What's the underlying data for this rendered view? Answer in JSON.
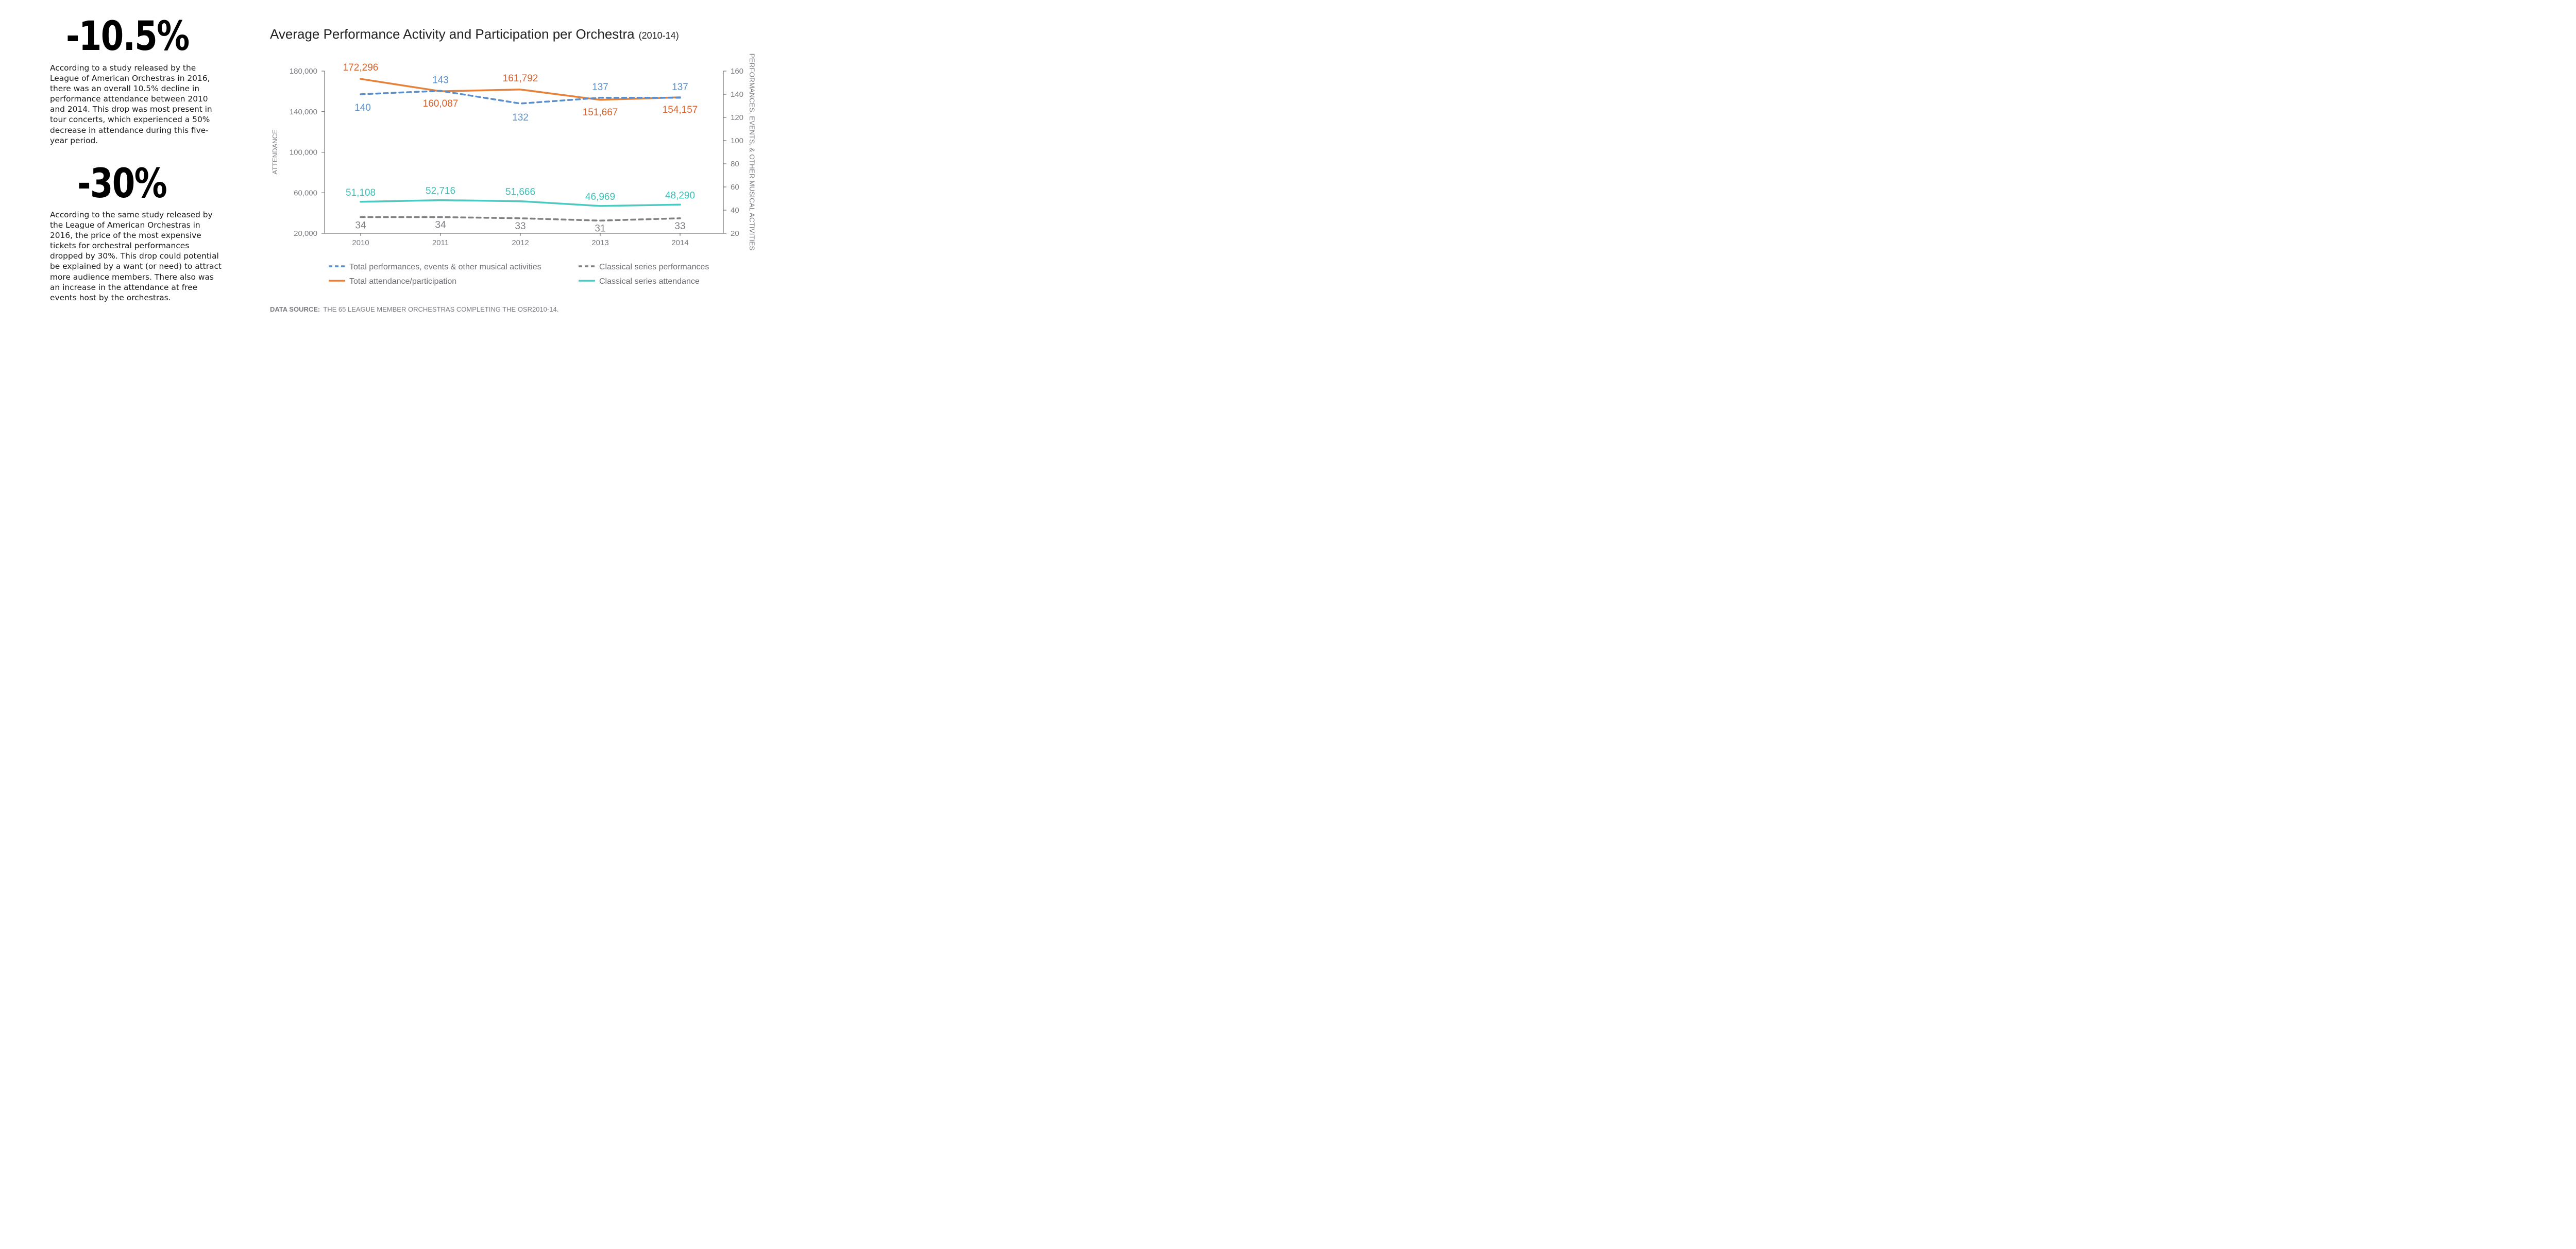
{
  "stats": [
    {
      "value": "-10.5%",
      "text": "According to a study released by the League of American Orchestras in 2016, there was an overall 10.5% decline in performance attendance between 2010 and 2014. This drop was most present in tour concerts, which experienced a 50% decrease in attendance during this five-year period."
    },
    {
      "value": "-30%",
      "text": "According to the same study released by the League of American Orchestras in 2016, the price of the most expensive tickets for orchestral performances dropped by 30%. This drop could potential be explained by a want (or need) to attract more audience members. There also was an increase in the attendance at free events host by the orchestras."
    }
  ],
  "chart_data": {
    "type": "line",
    "title": "Average Performance Activity and Participation per Orchestra",
    "subtitle": "(2010-14)",
    "x": [
      "2010",
      "2011",
      "2012",
      "2013",
      "2014"
    ],
    "ylabel_left": "ATTENDANCE",
    "ylabel_right": "PERFORMANCES, EVENTS, & OTHER MUSICAL ACTIVITIES",
    "ylim_left": [
      20000,
      180000
    ],
    "yticks_left": [
      "180,000",
      "140,000",
      "100,000",
      "60,000",
      "20,000"
    ],
    "ylim_right": [
      20,
      160
    ],
    "yticks_right": [
      "160",
      "140",
      "120",
      "100",
      "80",
      "60",
      "40",
      "20"
    ],
    "series": [
      {
        "name": "Total performances, events & other musical activities",
        "axis": "right",
        "style": "dashed",
        "color": "#5b8fcc",
        "values": [
          140,
          143,
          132,
          137,
          137
        ],
        "labels": [
          "140",
          "143",
          "132",
          "137",
          "137"
        ]
      },
      {
        "name": "Total attendance/participation",
        "axis": "left",
        "style": "solid",
        "color": "#e6813a",
        "label_color": "#d9622b",
        "values": [
          172296,
          160087,
          161792,
          151667,
          154157
        ],
        "labels": [
          "172,296",
          "160,087",
          "161,792",
          "151,667",
          "154,157"
        ]
      },
      {
        "name": "Classical series performances",
        "axis": "right",
        "style": "dashed",
        "color": "#7f7f84",
        "values": [
          34,
          34,
          33,
          31,
          33
        ],
        "labels": [
          "34",
          "34",
          "33",
          "31",
          "33"
        ]
      },
      {
        "name": "Classical series attendance",
        "axis": "left",
        "style": "solid",
        "color": "#4ec9c1",
        "label_color": "#3cc0b7",
        "values": [
          51108,
          52716,
          51666,
          46969,
          48290
        ],
        "labels": [
          "51,108",
          "52,716",
          "51,666",
          "46,969",
          "48,290"
        ]
      }
    ],
    "legend": "bottom",
    "source_label": "DATA SOURCE:",
    "source_text": "THE 65 LEAGUE MEMBER ORCHESTRAS COMPLETING THE OSR2010-14."
  }
}
